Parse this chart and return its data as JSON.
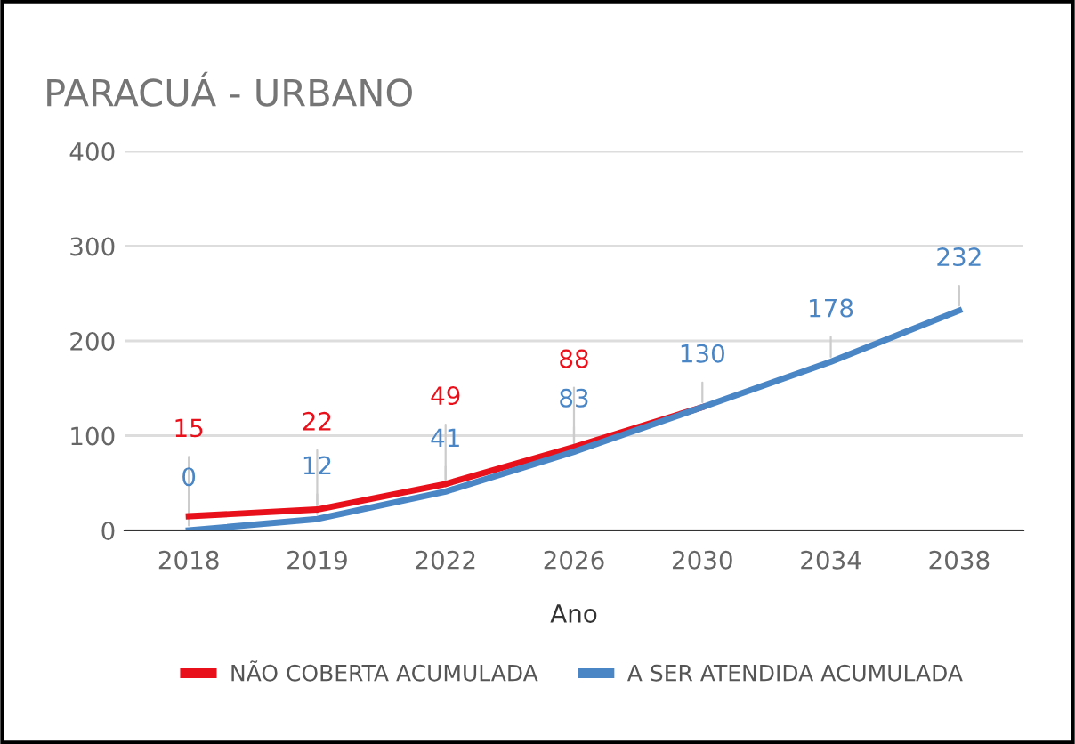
{
  "chart_data": {
    "type": "line",
    "title": "PARACUÁ - URBANO",
    "xlabel": "Ano",
    "categories": [
      "2018",
      "2019",
      "2022",
      "2026",
      "2030",
      "2034",
      "2038"
    ],
    "series": [
      {
        "name": "NÃO COBERTA ACUMULADA",
        "color": "#e8111b",
        "values": [
          15,
          22,
          49,
          88,
          130,
          null,
          null
        ],
        "value_labels": [
          "15",
          "22",
          "49",
          "88",
          null,
          null,
          null
        ]
      },
      {
        "name": "A SER ATENDIDA ACUMULADA",
        "color": "#4a86c5",
        "values": [
          0,
          12,
          41,
          83,
          130,
          178,
          232
        ],
        "value_labels": [
          "0",
          "12",
          "41",
          "83",
          "130",
          "178",
          "232"
        ]
      }
    ],
    "ylim": [
      0,
      400
    ],
    "yticks": [
      0,
      100,
      200,
      300,
      400
    ],
    "grid": "y",
    "legend": "bottom",
    "marker": "none",
    "line_style": "solid"
  }
}
